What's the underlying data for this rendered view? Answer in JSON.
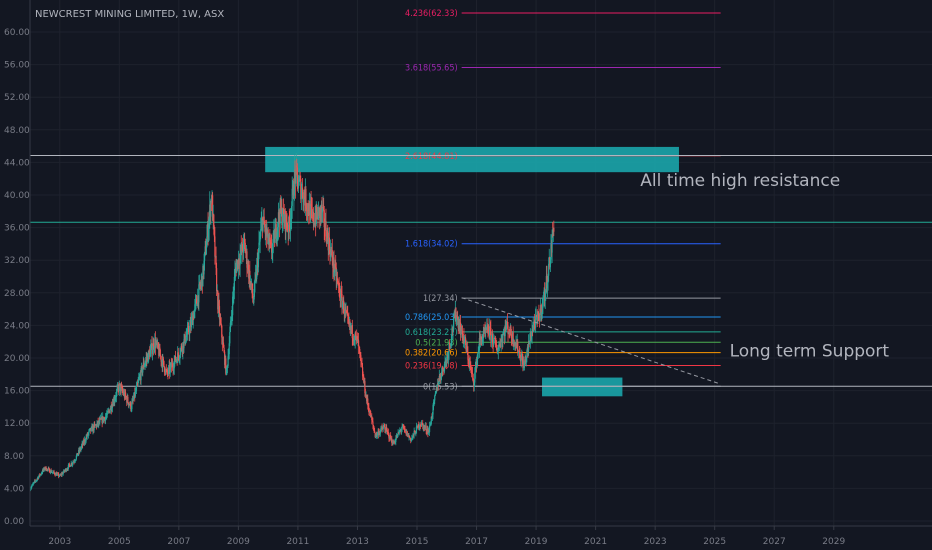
{
  "chart_data": {
    "type": "candlestick",
    "title": "NEWCREST MINING LIMITED, 1W, ASX",
    "ylim": [
      0,
      62.5
    ],
    "y_ticks": [
      "0.00",
      "4.00",
      "8.00",
      "12.00",
      "16.00",
      "20.00",
      "24.00",
      "28.00",
      "32.00",
      "36.00",
      "40.00",
      "44.00",
      "48.00",
      "52.00",
      "56.00",
      "60.00"
    ],
    "x_ticks": [
      "2003",
      "2005",
      "2007",
      "2009",
      "2011",
      "2013",
      "2015",
      "2017",
      "2019",
      "2021",
      "2023",
      "2025",
      "2027",
      "2029"
    ],
    "xlim": [
      2002.0,
      2032.3
    ],
    "price_series": {
      "x": [
        2002.0,
        2002.5,
        2003.0,
        2003.5,
        2004.0,
        2004.6,
        2005.0,
        2005.4,
        2005.8,
        2006.2,
        2006.6,
        2007.0,
        2007.4,
        2007.8,
        2008.1,
        2008.3,
        2008.6,
        2008.9,
        2009.2,
        2009.5,
        2009.8,
        2010.1,
        2010.4,
        2010.7,
        2010.9,
        2011.2,
        2011.5,
        2011.8,
        2012.1,
        2012.4,
        2012.7,
        2013.0,
        2013.3,
        2013.6,
        2013.9,
        2014.2,
        2014.5,
        2014.8,
        2015.1,
        2015.4,
        2015.7,
        2016.0,
        2016.3,
        2016.6,
        2016.9,
        2017.1,
        2017.4,
        2017.7,
        2018.0,
        2018.3,
        2018.6,
        2018.9,
        2019.1,
        2019.3,
        2019.5,
        2019.6
      ],
      "close": [
        4.0,
        6.5,
        5.5,
        7.5,
        11.0,
        13.0,
        16.5,
        14.0,
        19.0,
        22.0,
        18.0,
        20.5,
        24.0,
        30.0,
        40.0,
        27.0,
        18.0,
        31.0,
        34.0,
        27.0,
        37.0,
        33.0,
        38.0,
        36.0,
        42.5,
        40.0,
        37.0,
        38.0,
        33.0,
        28.0,
        24.0,
        22.0,
        15.0,
        10.5,
        11.5,
        9.5,
        11.5,
        10.0,
        12.0,
        11.0,
        17.0,
        20.0,
        25.5,
        22.0,
        17.0,
        22.0,
        23.5,
        21.0,
        24.0,
        22.0,
        19.0,
        24.0,
        25.0,
        28.0,
        33.0,
        36.66
      ]
    },
    "fibonacci": [
      {
        "ratio_label": "0(16.53)",
        "value": 16.53,
        "color": "#9598a1"
      },
      {
        "ratio_label": "0.236(19.08)",
        "value": 19.08,
        "color": "#f23645"
      },
      {
        "ratio_label": "0.382(20.66)",
        "value": 20.66,
        "color": "#ff9800"
      },
      {
        "ratio_label": "0.5(21.93)",
        "value": 21.93,
        "color": "#4caf50"
      },
      {
        "ratio_label": "0.618(23.21)",
        "value": 23.21,
        "color": "#22ab94"
      },
      {
        "ratio_label": "0.786(25.03)",
        "value": 25.03,
        "color": "#2196f3"
      },
      {
        "ratio_label": "1(27.34)",
        "value": 27.34,
        "color": "#9598a1"
      },
      {
        "ratio_label": "1.618(34.02)",
        "value": 34.02,
        "color": "#2962ff"
      },
      {
        "ratio_label": "2.618(44.81)",
        "value": 44.81,
        "color": "#f23645"
      },
      {
        "ratio_label": "3.618(55.65)",
        "value": 55.65,
        "color": "#9c27b0"
      },
      {
        "ratio_label": "4.236(62.33)",
        "value": 62.33,
        "color": "#e91e63"
      }
    ],
    "fib_x_range": [
      2016.5,
      2025.2
    ],
    "horizontal_levels": [
      {
        "label": "44.85",
        "value": 44.85,
        "color": "#b2b5be",
        "badge_color": "#f7c8c8"
      },
      {
        "label": "36.66",
        "value": 36.66,
        "color": "#22ab94",
        "badge_color": "#22ab94"
      },
      {
        "label": "16.54",
        "value": 16.54,
        "color": "#b2b5be",
        "badge_color": "#f7c8c8"
      }
    ],
    "zones": [
      {
        "x0": 2009.9,
        "x1": 2023.8,
        "y0": 42.8,
        "y1": 45.9,
        "color": "#1aa3a8"
      },
      {
        "x0": 2019.2,
        "x1": 2021.9,
        "y0": 15.3,
        "y1": 17.6,
        "color": "#1aa3a8"
      }
    ],
    "trendline": {
      "x0": 2016.5,
      "y0": 27.4,
      "x1": 2025.2,
      "y1": 16.8,
      "color": "#9598a1"
    },
    "annotations": [
      {
        "text": "All time high resistance",
        "x": 2022.5,
        "y": 41.1
      },
      {
        "text": "Long term Support",
        "x": 2025.5,
        "y": 20.2
      }
    ]
  },
  "colors": {
    "background": "#131722",
    "grid": "#1e222d",
    "axis_text": "#787b86",
    "up": "#26a69a",
    "down": "#ef5350"
  }
}
